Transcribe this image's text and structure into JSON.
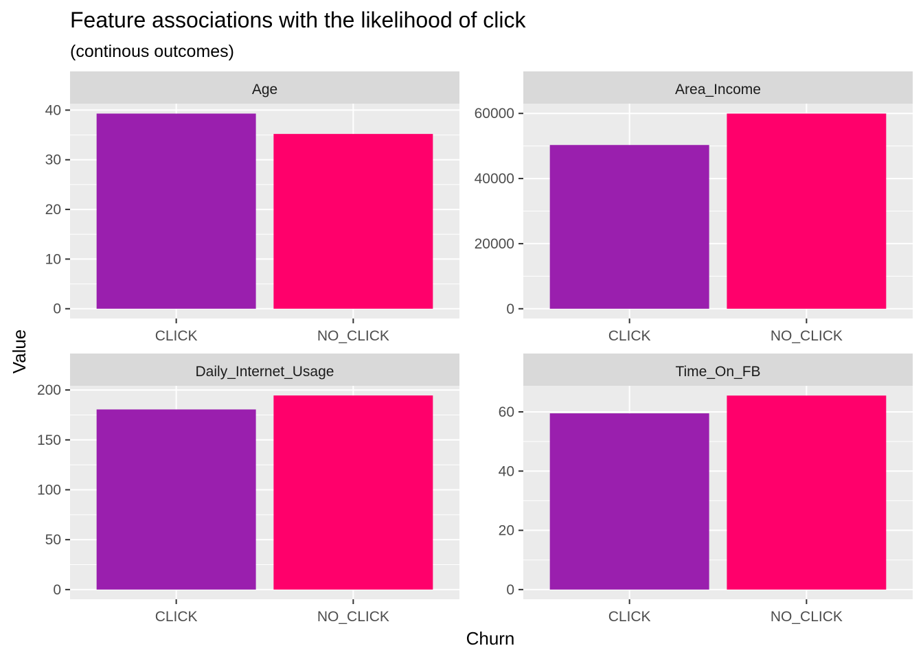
{
  "chart_data": {
    "type": "bar",
    "title": "Feature associations with the likelihood of click",
    "subtitle": "(continous outcomes)",
    "xlabel": "Churn",
    "ylabel": "Value",
    "categories": [
      "CLICK",
      "NO_CLICK"
    ],
    "colors": {
      "CLICK": "#9a1fae",
      "NO_CLICK": "#ff006b",
      "panel_bg": "#ebebeb",
      "strip_bg": "#d9d9d9",
      "grid": "#ffffff"
    },
    "legend": "none",
    "grid": true,
    "facets": [
      {
        "name": "Age",
        "values": [
          39.3,
          35.2
        ],
        "ylim": [
          -1.97,
          41.3
        ],
        "ticks": [
          0,
          10,
          20,
          30,
          40
        ],
        "tick_labels": [
          "0",
          "10",
          "20",
          "30",
          "40"
        ]
      },
      {
        "name": "Area_Income",
        "values": [
          50300,
          59950
        ],
        "ylim": [
          -3000,
          63000
        ],
        "ticks": [
          0,
          20000,
          40000,
          60000
        ],
        "tick_labels": [
          "0",
          "20000",
          "40000",
          "60000"
        ]
      },
      {
        "name": "Daily_Internet_Usage",
        "values": [
          180.5,
          194.5
        ],
        "ylim": [
          -9.73,
          204.2
        ],
        "ticks": [
          0,
          50,
          100,
          150,
          200
        ],
        "tick_labels": [
          "0",
          "50",
          "100",
          "150",
          "200"
        ]
      },
      {
        "name": "Time_On_FB",
        "values": [
          59.5,
          65.5
        ],
        "ylim": [
          -3.28,
          68.8
        ],
        "ticks": [
          0,
          20,
          40,
          60
        ],
        "tick_labels": [
          "0",
          "20",
          "40",
          "60"
        ]
      }
    ]
  }
}
